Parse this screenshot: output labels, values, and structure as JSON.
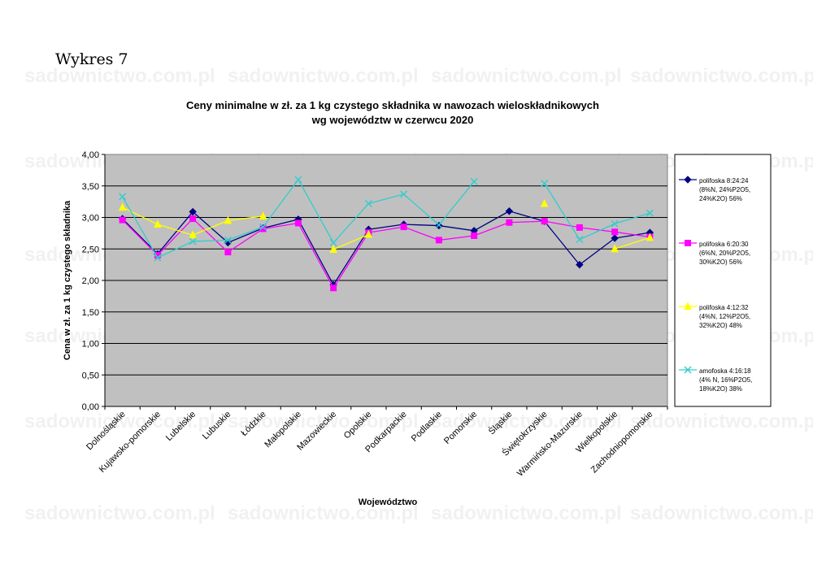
{
  "page": {
    "heading": "Wykres 7",
    "watermark": "sadownictwo.com.pl"
  },
  "chart_data": {
    "type": "line",
    "title_line1": "Ceny minimalne  w zł. za 1 kg czystego składnika w nawozach wieloskładnikowych",
    "title_line2": "wg województw w czerwcu 2020",
    "xlabel": "Województwo",
    "ylabel": "Cena w zł. za 1 kg czystego składnika",
    "ylim": [
      0,
      4
    ],
    "yticks": [
      "0,00",
      "0,50",
      "1,00",
      "1,50",
      "2,00",
      "2,50",
      "3,00",
      "3,50",
      "4,00"
    ],
    "grid": true,
    "legend_position": "right",
    "plot_background": "#c0c0c0",
    "categories": [
      "Dolnośląskie",
      "Kujawsko-pomorskie",
      "Lubelskie",
      "Lubuskie",
      "Łódzkie",
      "Małopolskie",
      "Mazowieckie",
      "Opolskie",
      "Podkarpackie",
      "Podlaskie",
      "Pomorskie",
      "Śląskie",
      "Świętokrzyskie",
      "Warmińsko-Mazurskie",
      "Wielkopolskie",
      "Zachodniopomorskie"
    ],
    "series": [
      {
        "legend_lines": [
          "polifoska 8:24:24",
          "(8%N, 24%P2O5,",
          "24%K2O) 56%"
        ],
        "color": "#000080",
        "marker": "diamond",
        "values": [
          2.98,
          2.42,
          3.09,
          2.6,
          2.83,
          2.97,
          1.93,
          2.81,
          2.89,
          2.87,
          2.79,
          3.1,
          2.94,
          2.25,
          2.67,
          2.76
        ]
      },
      {
        "legend_lines": [
          "polifoska 6:20:30",
          "(6%N, 20%P2O5,",
          "30%K2O) 56%"
        ],
        "color": "#ff00ff",
        "marker": "square",
        "values": [
          2.96,
          2.4,
          2.98,
          2.45,
          2.82,
          2.91,
          1.88,
          2.76,
          2.85,
          2.64,
          2.71,
          2.92,
          2.94,
          2.84,
          2.77,
          2.69
        ]
      },
      {
        "legend_lines": [
          "polifoska 4:12:32",
          "(4%N, 12%P2O5,",
          "32%K2O) 48%"
        ],
        "color": "#ffff00",
        "marker": "triangle",
        "values": [
          3.16,
          2.89,
          2.72,
          2.95,
          3.02,
          null,
          2.49,
          2.73,
          null,
          null,
          null,
          null,
          3.22,
          null,
          2.5,
          2.68
        ]
      },
      {
        "legend_lines": [
          "amofoska 4:16:18",
          "(4% N, 16%P2O5,",
          "18%K2O) 38%"
        ],
        "color": "#33cccc",
        "marker": "x",
        "values": [
          3.33,
          2.36,
          2.62,
          2.64,
          2.85,
          3.6,
          2.6,
          3.22,
          3.37,
          2.88,
          3.57,
          null,
          3.54,
          2.65,
          2.9,
          3.07
        ]
      }
    ]
  }
}
